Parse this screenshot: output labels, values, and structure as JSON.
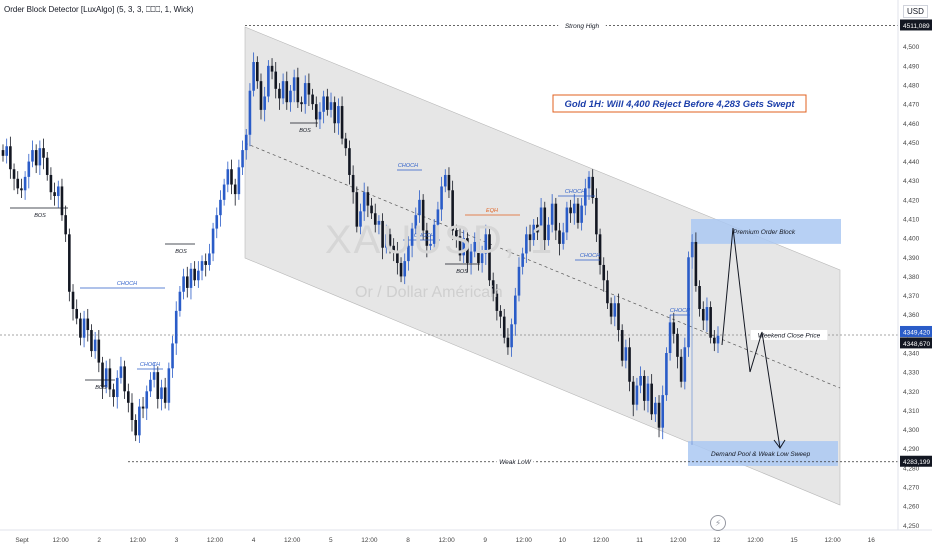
{
  "indicator_label": "Order Block Detector [LuxAlgo] (5, 3, 3, ⎕⎕⎕, 1, Wick)",
  "currency": "USD",
  "watermark": {
    "line1": "XAUUSD, 1",
    "line2": "Or / Dollar Américain"
  },
  "colors": {
    "up": "#2a5cc8",
    "down": "#131722",
    "channel": "#e6e6e6",
    "zone": "#aac8f2",
    "title_border": "#e0601f"
  },
  "chart_data": {
    "type": "candlestick",
    "title": "Gold 1H: Will 4,400 Reject Before 4,283 Gets Swept",
    "ylim": [
      4250,
      4512
    ],
    "y_ticks": [
      4250,
      4260,
      4270,
      4280,
      4290,
      4300,
      4310,
      4320,
      4330,
      4340,
      4350,
      4360,
      4370,
      4380,
      4390,
      4400,
      4410,
      4420,
      4430,
      4440,
      4450,
      4460,
      4470,
      4480,
      4490,
      4500
    ],
    "x_ticks": [
      "Sept",
      "12:00",
      "2",
      "12:00",
      "3",
      "12:00",
      "4",
      "12:00",
      "5",
      "12:00",
      "8",
      "12:00",
      "9",
      "12:00",
      "10",
      "12:00",
      "11",
      "12:00",
      "12",
      "12:00",
      "15",
      "12:00",
      "16"
    ],
    "price_labels": [
      {
        "text": "4511,089",
        "value": 4511.089
      },
      {
        "text": "4349,420",
        "value": 4349.42
      },
      {
        "text": "4348,670",
        "value": 4348.67
      },
      {
        "text": "4283,199",
        "value": 4283.199
      }
    ],
    "levels": [
      {
        "name": "Strong High",
        "value": 4511.089
      },
      {
        "name": "Weak LoW",
        "value": 4283.199
      },
      {
        "name": "Weekend Close Price",
        "value": 4349.42
      }
    ],
    "zones": [
      {
        "label": "Premium Order Block",
        "low": 4397,
        "high": 4410
      },
      {
        "label": "Demand Pool & Weak Low Sweep",
        "low": 4281,
        "high": 4294
      }
    ],
    "structure_labels": [
      "BOS",
      "BOS",
      "CHOCH",
      "BOS",
      "BOS",
      "CHOCH",
      "BOS",
      "CHOCH",
      "CHOCH",
      "BOS",
      "EQH",
      "CHOCH",
      "CHOCH",
      "CHOCH"
    ],
    "candles_close": [
      4443,
      4448,
      4436,
      4431,
      4426,
      4425,
      4432,
      4440,
      4446,
      4438,
      4447,
      4442,
      4433,
      4424,
      4422,
      4427,
      4412,
      4402,
      4372,
      4363,
      4358,
      4348,
      4358,
      4352,
      4341,
      4347,
      4335,
      4322,
      4332,
      4321,
      4317,
      4327,
      4333,
      4320,
      4314,
      4305,
      4297,
      4312,
      4311,
      4320,
      4326,
      4330,
      4316,
      4322,
      4314,
      4332,
      4345,
      4362,
      4372,
      4380,
      4374,
      4384,
      4378,
      4383,
      4388,
      4386,
      4392,
      4405,
      4412,
      4420,
      4428,
      4436,
      4428,
      4423,
      4437,
      4446,
      4454,
      4477,
      4492,
      4482,
      4467,
      4474,
      4490,
      4487,
      4478,
      4473,
      4482,
      4471,
      4477,
      4484,
      4471,
      4470,
      4481,
      4475,
      4470,
      4462,
      4466,
      4474,
      4467,
      4471,
      4460,
      4469,
      4452,
      4447,
      4433,
      4424,
      4406,
      4414,
      4424,
      4417,
      4413,
      4407,
      4409,
      4395,
      4402,
      4396,
      4393,
      4387,
      4380,
      4388,
      4396,
      4405,
      4412,
      4420,
      4404,
      4396,
      4397,
      4407,
      4415,
      4427,
      4433,
      4425,
      4404,
      4401,
      4391,
      4400,
      4387,
      4393,
      4398,
      4387,
      4392,
      4402,
      4378,
      4371,
      4362,
      4359,
      4348,
      4343,
      4355,
      4370,
      4385,
      4392,
      4402,
      4399,
      4407,
      4403,
      4416,
      4399,
      4407,
      4418,
      4404,
      4397,
      4403,
      4416,
      4413,
      4418,
      4408,
      4417,
      4426,
      4432,
      4421,
      4402,
      4386,
      4378,
      4366,
      4359,
      4366,
      4352,
      4336,
      4343,
      4325,
      4313,
      4323,
      4328,
      4315,
      4324,
      4308,
      4314,
      4301,
      4318,
      4340,
      4356,
      4350,
      4338,
      4325,
      4343,
      4390,
      4398,
      4375,
      4363,
      4357,
      4364,
      4348,
      4345,
      4349
    ]
  }
}
